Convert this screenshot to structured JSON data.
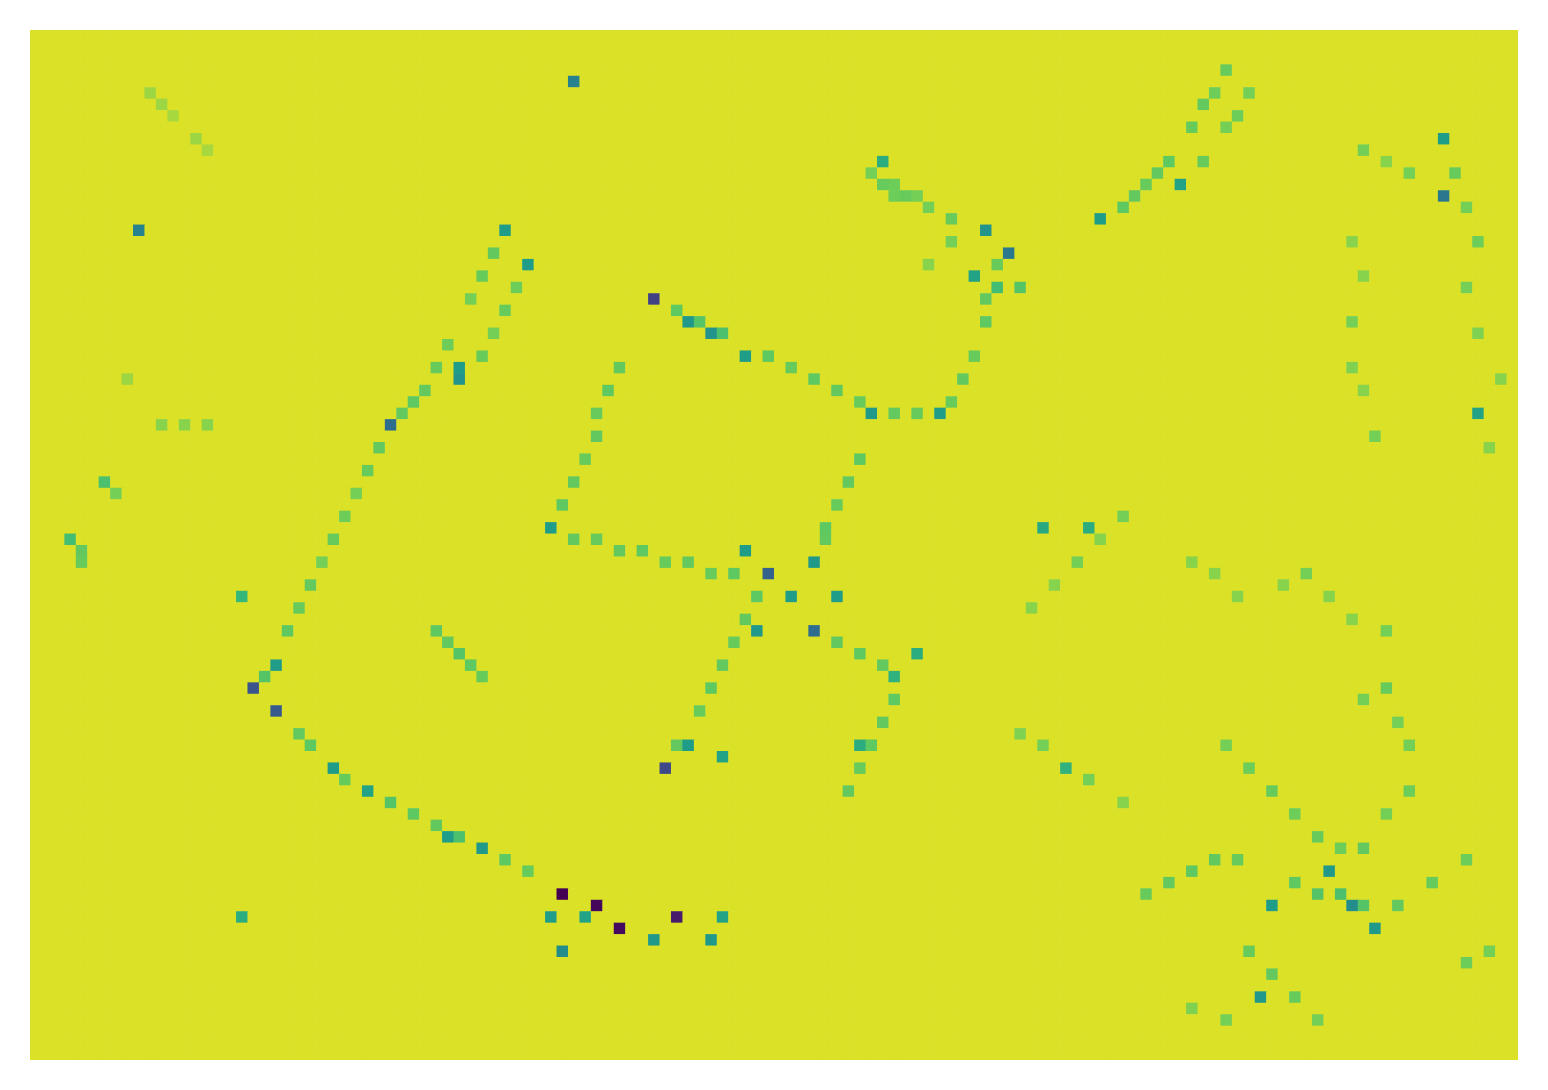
{
  "chart_data": {
    "type": "heatmap",
    "ncols": 130,
    "nrows": 90,
    "default_value": 0.98,
    "zlim": [
      0,
      1
    ],
    "tick_labels": false,
    "cells": [
      [
        46,
        75,
        0.0
      ],
      [
        49,
        76,
        0.02
      ],
      [
        51,
        78,
        0.03
      ],
      [
        56,
        77,
        0.08
      ],
      [
        54,
        23,
        0.22
      ],
      [
        55,
        64,
        0.25
      ],
      [
        19,
        57,
        0.3
      ],
      [
        21,
        59,
        0.32
      ],
      [
        31,
        34,
        0.4
      ],
      [
        64,
        47,
        0.35
      ],
      [
        68,
        52,
        0.4
      ],
      [
        123,
        14,
        0.45
      ],
      [
        85,
        19,
        0.45
      ],
      [
        47,
        4,
        0.5
      ],
      [
        9,
        17,
        0.5
      ],
      [
        115,
        76,
        0.55
      ],
      [
        113,
        73,
        0.6
      ],
      [
        107,
        84,
        0.6
      ],
      [
        108,
        76,
        0.62
      ],
      [
        117,
        78,
        0.6
      ],
      [
        46,
        80,
        0.55
      ],
      [
        54,
        79,
        0.6
      ],
      [
        59,
        79,
        0.6
      ],
      [
        59,
        26,
        0.58
      ],
      [
        62,
        28,
        0.62
      ],
      [
        57,
        25,
        0.6
      ],
      [
        83,
        17,
        0.58
      ],
      [
        82,
        21,
        0.65
      ],
      [
        73,
        33,
        0.6
      ],
      [
        79,
        33,
        0.62
      ],
      [
        37,
        30,
        0.58
      ],
      [
        37,
        29,
        0.62
      ],
      [
        43,
        20,
        0.62
      ],
      [
        41,
        17,
        0.62
      ],
      [
        21,
        55,
        0.62
      ],
      [
        26,
        64,
        0.62
      ],
      [
        39,
        71,
        0.6
      ],
      [
        36,
        70,
        0.62
      ],
      [
        29,
        66,
        0.65
      ],
      [
        45,
        43,
        0.62
      ],
      [
        62,
        45,
        0.62
      ],
      [
        68,
        46,
        0.6
      ],
      [
        66,
        49,
        0.62
      ],
      [
        70,
        49,
        0.62
      ],
      [
        63,
        52,
        0.6
      ],
      [
        77,
        54,
        0.7
      ],
      [
        75,
        56,
        0.72
      ],
      [
        57,
        62,
        0.62
      ],
      [
        60,
        63,
        0.65
      ],
      [
        72,
        62,
        0.7
      ],
      [
        90,
        64,
        0.72
      ],
      [
        88,
        43,
        0.68
      ],
      [
        92,
        43,
        0.7
      ],
      [
        93,
        16,
        0.62
      ],
      [
        100,
        13,
        0.65
      ],
      [
        126,
        33,
        0.65
      ],
      [
        123,
        9,
        0.62
      ],
      [
        74,
        11,
        0.7
      ],
      [
        45,
        77,
        0.62
      ],
      [
        48,
        77,
        0.65
      ],
      [
        60,
        77,
        0.65
      ],
      [
        18,
        77,
        0.7
      ],
      [
        18,
        49,
        0.75
      ],
      [
        3,
        44,
        0.78
      ],
      [
        6,
        39,
        0.8
      ],
      [
        40,
        19,
        0.85
      ],
      [
        39,
        21,
        0.86
      ],
      [
        38,
        23,
        0.88
      ],
      [
        36,
        27,
        0.87
      ],
      [
        35,
        29,
        0.86
      ],
      [
        34,
        31,
        0.85
      ],
      [
        33,
        32,
        0.84
      ],
      [
        32,
        33,
        0.85
      ],
      [
        42,
        22,
        0.87
      ],
      [
        41,
        24,
        0.86
      ],
      [
        40,
        26,
        0.88
      ],
      [
        39,
        28,
        0.86
      ],
      [
        30,
        36,
        0.85
      ],
      [
        29,
        38,
        0.86
      ],
      [
        28,
        40,
        0.88
      ],
      [
        27,
        42,
        0.87
      ],
      [
        26,
        44,
        0.86
      ],
      [
        25,
        46,
        0.88
      ],
      [
        24,
        48,
        0.85
      ],
      [
        23,
        50,
        0.86
      ],
      [
        22,
        52,
        0.84
      ],
      [
        20,
        56,
        0.82
      ],
      [
        23,
        61,
        0.85
      ],
      [
        24,
        62,
        0.84
      ],
      [
        27,
        65,
        0.86
      ],
      [
        31,
        67,
        0.82
      ],
      [
        33,
        68,
        0.84
      ],
      [
        35,
        69,
        0.85
      ],
      [
        37,
        70,
        0.8
      ],
      [
        41,
        72,
        0.84
      ],
      [
        43,
        73,
        0.86
      ],
      [
        56,
        24,
        0.84
      ],
      [
        58,
        25,
        0.82
      ],
      [
        60,
        26,
        0.8
      ],
      [
        64,
        28,
        0.84
      ],
      [
        66,
        29,
        0.86
      ],
      [
        68,
        30,
        0.84
      ],
      [
        70,
        31,
        0.85
      ],
      [
        72,
        32,
        0.86
      ],
      [
        75,
        33,
        0.85
      ],
      [
        77,
        33,
        0.86
      ],
      [
        84,
        20,
        0.86
      ],
      [
        83,
        23,
        0.85
      ],
      [
        83,
        25,
        0.84
      ],
      [
        82,
        28,
        0.86
      ],
      [
        81,
        30,
        0.85
      ],
      [
        80,
        32,
        0.86
      ],
      [
        104,
        3,
        0.86
      ],
      [
        103,
        5,
        0.87
      ],
      [
        102,
        6,
        0.85
      ],
      [
        101,
        8,
        0.86
      ],
      [
        99,
        11,
        0.84
      ],
      [
        98,
        12,
        0.85
      ],
      [
        97,
        13,
        0.86
      ],
      [
        96,
        14,
        0.85
      ],
      [
        95,
        15,
        0.84
      ],
      [
        106,
        5,
        0.88
      ],
      [
        105,
        7,
        0.87
      ],
      [
        104,
        8,
        0.88
      ],
      [
        102,
        11,
        0.86
      ],
      [
        51,
        29,
        0.85
      ],
      [
        50,
        31,
        0.84
      ],
      [
        49,
        33,
        0.86
      ],
      [
        49,
        35,
        0.85
      ],
      [
        48,
        37,
        0.86
      ],
      [
        47,
        39,
        0.85
      ],
      [
        46,
        41,
        0.84
      ],
      [
        47,
        44,
        0.85
      ],
      [
        49,
        44,
        0.86
      ],
      [
        51,
        45,
        0.85
      ],
      [
        53,
        45,
        0.84
      ],
      [
        55,
        46,
        0.86
      ],
      [
        57,
        46,
        0.85
      ],
      [
        59,
        47,
        0.86
      ],
      [
        61,
        47,
        0.84
      ],
      [
        72,
        37,
        0.84
      ],
      [
        71,
        39,
        0.85
      ],
      [
        70,
        41,
        0.86
      ],
      [
        69,
        43,
        0.84
      ],
      [
        69,
        44,
        0.85
      ],
      [
        63,
        49,
        0.84
      ],
      [
        62,
        51,
        0.85
      ],
      [
        61,
        53,
        0.86
      ],
      [
        60,
        55,
        0.85
      ],
      [
        59,
        57,
        0.84
      ],
      [
        58,
        59,
        0.86
      ],
      [
        56,
        62,
        0.85
      ],
      [
        70,
        53,
        0.85
      ],
      [
        72,
        54,
        0.84
      ],
      [
        74,
        55,
        0.85
      ],
      [
        75,
        58,
        0.84
      ],
      [
        74,
        60,
        0.85
      ],
      [
        73,
        62,
        0.84
      ],
      [
        72,
        64,
        0.86
      ],
      [
        71,
        66,
        0.85
      ],
      [
        35,
        52,
        0.84
      ],
      [
        36,
        53,
        0.85
      ],
      [
        37,
        54,
        0.82
      ],
      [
        38,
        55,
        0.84
      ],
      [
        39,
        56,
        0.86
      ],
      [
        97,
        75,
        0.86
      ],
      [
        99,
        74,
        0.85
      ],
      [
        101,
        73,
        0.84
      ],
      [
        103,
        72,
        0.85
      ],
      [
        105,
        72,
        0.86
      ],
      [
        110,
        74,
        0.84
      ],
      [
        112,
        75,
        0.82
      ],
      [
        114,
        75,
        0.8
      ],
      [
        116,
        76,
        0.82
      ],
      [
        119,
        76,
        0.85
      ],
      [
        122,
        74,
        0.86
      ],
      [
        125,
        72,
        0.87
      ],
      [
        104,
        62,
        0.88
      ],
      [
        106,
        64,
        0.87
      ],
      [
        108,
        66,
        0.86
      ],
      [
        110,
        68,
        0.87
      ],
      [
        112,
        70,
        0.86
      ],
      [
        114,
        71,
        0.87
      ],
      [
        116,
        71,
        0.85
      ],
      [
        118,
        68,
        0.88
      ],
      [
        120,
        66,
        0.87
      ],
      [
        106,
        80,
        0.86
      ],
      [
        108,
        82,
        0.85
      ],
      [
        110,
        84,
        0.86
      ],
      [
        112,
        86,
        0.88
      ],
      [
        104,
        86,
        0.88
      ],
      [
        101,
        85,
        0.89
      ],
      [
        127,
        80,
        0.88
      ],
      [
        125,
        81,
        0.87
      ],
      [
        73,
        12,
        0.88
      ],
      [
        74,
        13,
        0.86
      ],
      [
        75,
        13,
        0.87
      ],
      [
        76,
        14,
        0.86
      ],
      [
        77,
        14,
        0.88
      ],
      [
        75,
        14,
        0.87
      ],
      [
        78,
        15,
        0.88
      ],
      [
        80,
        16,
        0.86
      ],
      [
        10,
        5,
        0.92
      ],
      [
        11,
        6,
        0.92
      ],
      [
        12,
        7,
        0.93
      ],
      [
        14,
        9,
        0.92
      ],
      [
        15,
        10,
        0.93
      ],
      [
        8,
        30,
        0.92
      ],
      [
        11,
        34,
        0.9
      ],
      [
        13,
        34,
        0.9
      ],
      [
        15,
        34,
        0.9
      ],
      [
        4,
        45,
        0.85
      ],
      [
        4,
        46,
        0.86
      ],
      [
        7,
        40,
        0.88
      ],
      [
        116,
        10,
        0.88
      ],
      [
        118,
        11,
        0.9
      ],
      [
        120,
        12,
        0.88
      ],
      [
        124,
        12,
        0.86
      ],
      [
        125,
        15,
        0.88
      ],
      [
        126,
        18,
        0.87
      ],
      [
        125,
        22,
        0.88
      ],
      [
        126,
        26,
        0.89
      ],
      [
        128,
        30,
        0.9
      ],
      [
        127,
        36,
        0.9
      ],
      [
        115,
        18,
        0.9
      ],
      [
        116,
        21,
        0.9
      ],
      [
        115,
        25,
        0.88
      ],
      [
        115,
        29,
        0.89
      ],
      [
        116,
        31,
        0.9
      ],
      [
        117,
        35,
        0.88
      ],
      [
        95,
        42,
        0.88
      ],
      [
        93,
        44,
        0.9
      ],
      [
        91,
        46,
        0.88
      ],
      [
        89,
        48,
        0.9
      ],
      [
        87,
        50,
        0.9
      ],
      [
        88,
        62,
        0.88
      ],
      [
        86,
        61,
        0.89
      ],
      [
        92,
        65,
        0.88
      ],
      [
        95,
        67,
        0.9
      ],
      [
        101,
        46,
        0.9
      ],
      [
        103,
        47,
        0.9
      ],
      [
        105,
        49,
        0.9
      ],
      [
        109,
        48,
        0.9
      ],
      [
        111,
        47,
        0.88
      ],
      [
        113,
        49,
        0.9
      ],
      [
        115,
        51,
        0.9
      ],
      [
        118,
        52,
        0.88
      ],
      [
        116,
        58,
        0.88
      ],
      [
        118,
        57,
        0.86
      ],
      [
        119,
        60,
        0.88
      ],
      [
        120,
        62,
        0.88
      ],
      [
        84,
        22,
        0.78
      ],
      [
        86,
        22,
        0.82
      ],
      [
        78,
        20,
        0.9
      ],
      [
        80,
        18,
        0.88
      ]
    ]
  }
}
